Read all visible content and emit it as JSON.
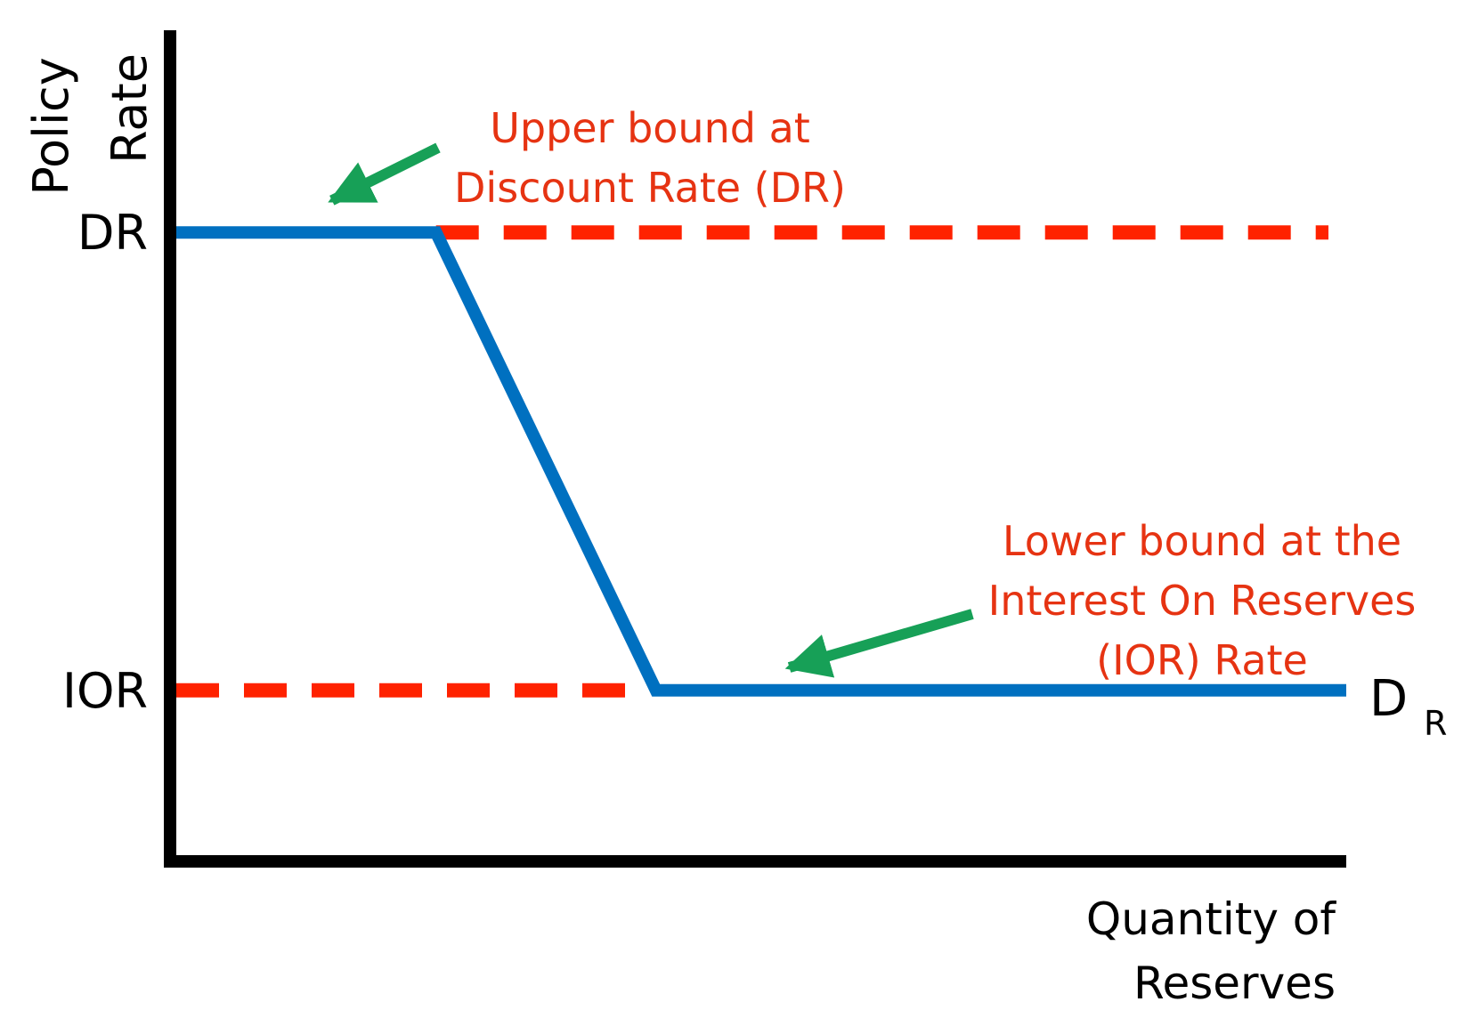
{
  "chart_data": {
    "type": "line",
    "ylabel": [
      "Policy",
      "Rate"
    ],
    "xlabel": [
      "Quantity of",
      "Reserves"
    ],
    "y_ticks": [
      {
        "label": "DR",
        "level": "DR"
      },
      {
        "label": "IOR",
        "level": "IOR"
      }
    ],
    "levels": {
      "DR": 1,
      "IOR": 0
    },
    "xlim": [
      0,
      100
    ],
    "ylim": [
      -0.36,
      1.43
    ],
    "grid": false,
    "series": [
      {
        "name": "D",
        "name_subscript": "R",
        "color": "#0070c0",
        "points": [
          {
            "x": 0,
            "y": 1
          },
          {
            "x": 22.2,
            "y": 1
          },
          {
            "x": 41.0,
            "y": 0
          },
          {
            "x": 100,
            "y": 0
          }
        ]
      }
    ],
    "reference_lines": [
      {
        "level": "DR",
        "y": 1,
        "x_start": 22.2,
        "x_end": 100,
        "style": "dashed",
        "color": "#ff2200"
      },
      {
        "level": "IOR",
        "y": 0,
        "x_start": 0,
        "x_end": 41.0,
        "style": "dashed",
        "color": "#ff2200"
      }
    ],
    "annotations": [
      {
        "id": "upper",
        "lines": [
          "Upper bound at",
          "Discount Rate (DR)"
        ],
        "color": "#e63312",
        "arrow_color": "#17a057",
        "points_to": {
          "x": 13.3,
          "y": 1.07
        }
      },
      {
        "id": "lower",
        "lines": [
          "Lower bound at the",
          "Interest On Reserves",
          "(IOR) Rate"
        ],
        "color": "#e63312",
        "arrow_color": "#17a057",
        "points_to": {
          "x": 52.4,
          "y": 0.05
        }
      }
    ]
  }
}
